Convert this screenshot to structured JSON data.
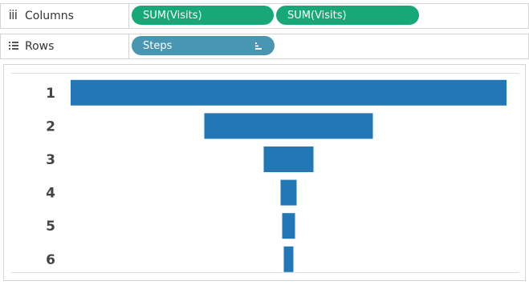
{
  "shelves": {
    "columns": {
      "label": "Columns",
      "pills": [
        "SUM(Visits)",
        "SUM(Visits)"
      ]
    },
    "rows": {
      "label": "Rows",
      "pills": [
        "Steps"
      ]
    }
  },
  "chart_data": {
    "type": "funnel",
    "categories": [
      "1",
      "2",
      "3",
      "4",
      "5",
      "6"
    ],
    "values": [
      543,
      210,
      62,
      20,
      16,
      12
    ],
    "color": "#2277b4"
  }
}
